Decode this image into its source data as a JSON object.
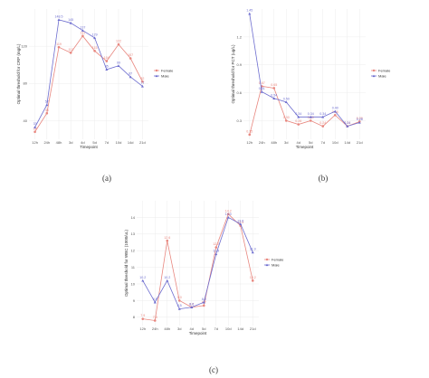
{
  "colors": {
    "Female": "#e8877f",
    "Male": "#6d6dcf"
  },
  "chart_data": [
    {
      "type": "line",
      "panel_label": "(a)",
      "xlabel": "Timepoint",
      "ylabel": "Optimal threshold for CRP (mg/L)",
      "categories": [
        "12h",
        "24h",
        "48h",
        "3d",
        "4d",
        "5d",
        "7d",
        "10d",
        "14d",
        "21d"
      ],
      "ylim": [
        20,
        160
      ],
      "yticks": [
        "40",
        "80",
        "120"
      ],
      "grid": true,
      "legend": "right",
      "series": [
        {
          "name": "Female",
          "values": [
            28,
            48,
            119,
            113,
            131,
            115,
            104,
            122,
            107,
            82
          ],
          "labels": [
            "28",
            "48",
            "119",
            "113",
            "131",
            "115",
            "104",
            "122",
            "107",
            "82"
          ]
        },
        {
          "name": "Male",
          "values": [
            33,
            57,
            148.5,
            145,
            137,
            129,
            95,
            99,
            87,
            77
          ],
          "labels": [
            "33",
            "57",
            "148.5",
            "145",
            "137",
            "129",
            "95",
            "99",
            "87",
            "77"
          ]
        }
      ]
    },
    {
      "type": "line",
      "panel_label": "(b)",
      "xlabel": "Timepoint",
      "ylabel": "Optimal threshold for PCT (ug/L)",
      "categories": [
        "12h",
        "24h",
        "48h",
        "3d",
        "4d",
        "5d",
        "7d",
        "10d",
        "14d",
        "21d"
      ],
      "ylim": [
        0.1,
        1.5
      ],
      "yticks": [
        "0.3",
        "0.6",
        "0.9",
        "1.2"
      ],
      "grid": true,
      "legend": "right",
      "series": [
        {
          "name": "Female",
          "values": [
            0.15,
            0.67,
            0.65,
            0.3,
            0.26,
            0.3,
            0.24,
            0.36,
            0.24,
            0.29
          ],
          "labels": [
            "0.15",
            "0.67",
            "0.65",
            "0.30",
            "0.26",
            "0.30",
            "0.24",
            "0.36",
            "0.24",
            "0.29"
          ]
        },
        {
          "name": "Male",
          "values": [
            1.45,
            0.61,
            0.54,
            0.5,
            0.34,
            0.34,
            0.34,
            0.4,
            0.24,
            0.28
          ],
          "labels": [
            "1.45",
            "0.61",
            "0.54",
            "0.50",
            "0.34",
            "0.34",
            "0.34",
            "0.40",
            "0.24",
            "0.28"
          ]
        }
      ]
    },
    {
      "type": "line",
      "panel_label": "(c)",
      "xlabel": "Timepoint",
      "ylabel": "Optimal threshold for WBC (1000/uL)",
      "categories": [
        "12h",
        "24h",
        "48h",
        "3d",
        "4d",
        "5d",
        "7d",
        "10d",
        "14d",
        "21d"
      ],
      "ylim": [
        7.5,
        15
      ],
      "yticks": [
        "8",
        "9",
        "10",
        "11",
        "12",
        "13",
        "14"
      ],
      "grid": true,
      "legend": "right",
      "series": [
        {
          "name": "Female",
          "values": [
            7.9,
            7.8,
            12.6,
            9.0,
            8.6,
            8.7,
            12.2,
            14.2,
            13.5,
            10.2
          ],
          "labels": [
            "7.9",
            "7.8",
            "12.6",
            "9.0",
            "8.6",
            "8.7",
            "12.2",
            "14.2",
            "13.5",
            "10.2"
          ]
        },
        {
          "name": "Male",
          "values": [
            10.2,
            8.9,
            10.2,
            8.5,
            8.6,
            8.9,
            11.8,
            14.0,
            13.6,
            11.9
          ],
          "labels": [
            "10.2",
            "8.9",
            "10.2",
            "8.5",
            "8.6",
            "8.9",
            "11.8",
            "14.0",
            "13.6",
            "11.9"
          ]
        }
      ]
    }
  ]
}
